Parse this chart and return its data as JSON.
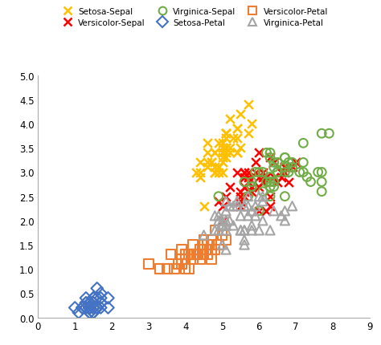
{
  "setosa_sepal": {
    "x": [
      5.1,
      4.9,
      4.7,
      4.6,
      5.0,
      5.4,
      4.6,
      5.0,
      4.4,
      4.9,
      5.4,
      4.8,
      4.8,
      4.3,
      5.8,
      5.7,
      5.4,
      5.1,
      5.7,
      5.1,
      5.4,
      5.1,
      4.6,
      5.1,
      4.8,
      5.0,
      5.0,
      5.2,
      5.2,
      4.7,
      4.8,
      5.4,
      5.2,
      5.5,
      4.9,
      5.0,
      5.5,
      4.9,
      4.4,
      5.1,
      5.0,
      4.5,
      4.4,
      5.0,
      5.1,
      4.8,
      5.1,
      4.6,
      5.3,
      5.0
    ],
    "y": [
      3.5,
      3.0,
      3.2,
      3.1,
      3.6,
      3.9,
      3.4,
      3.4,
      2.9,
      3.1,
      3.7,
      3.4,
      3.0,
      3.0,
      4.0,
      4.4,
      3.9,
      3.5,
      3.8,
      3.8,
      3.4,
      3.7,
      3.6,
      3.3,
      3.4,
      3.0,
      3.4,
      3.5,
      3.4,
      3.2,
      3.1,
      3.4,
      4.1,
      4.2,
      3.1,
      3.2,
      3.5,
      3.6,
      3.0,
      3.4,
      3.5,
      2.3,
      3.2,
      3.5,
      3.8,
      3.0,
      3.8,
      3.2,
      3.7,
      3.3
    ]
  },
  "setosa_petal": {
    "x": [
      1.4,
      1.4,
      1.3,
      1.5,
      1.4,
      1.7,
      1.4,
      1.5,
      1.4,
      1.5,
      1.5,
      1.6,
      1.4,
      1.1,
      1.2,
      1.5,
      1.3,
      1.4,
      1.7,
      1.5,
      1.7,
      1.5,
      1.0,
      1.7,
      1.9,
      1.6,
      1.6,
      1.5,
      1.4,
      1.6,
      1.6,
      1.5,
      1.5,
      1.4,
      1.5,
      1.2,
      1.3,
      1.4,
      1.3,
      1.5,
      1.3,
      1.3,
      1.3,
      1.6,
      1.9,
      1.4,
      1.6,
      1.4,
      1.5,
      1.4
    ],
    "y": [
      0.2,
      0.2,
      0.2,
      0.2,
      0.2,
      0.4,
      0.3,
      0.2,
      0.2,
      0.1,
      0.2,
      0.2,
      0.1,
      0.1,
      0.2,
      0.4,
      0.4,
      0.3,
      0.3,
      0.3,
      0.2,
      0.4,
      0.2,
      0.5,
      0.2,
      0.2,
      0.4,
      0.2,
      0.2,
      0.2,
      0.2,
      0.4,
      0.1,
      0.2,
      0.2,
      0.2,
      0.2,
      0.1,
      0.2,
      0.3,
      0.3,
      0.3,
      0.2,
      0.6,
      0.4,
      0.3,
      0.2,
      0.2,
      0.2,
      0.2
    ]
  },
  "versicolor_sepal": {
    "x": [
      7.0,
      6.4,
      6.9,
      5.5,
      6.5,
      5.7,
      6.3,
      4.9,
      6.6,
      5.2,
      5.0,
      5.9,
      6.0,
      6.1,
      5.6,
      6.7,
      5.6,
      5.8,
      6.2,
      5.6,
      5.9,
      6.1,
      6.3,
      6.1,
      6.4,
      6.6,
      6.8,
      6.7,
      6.0,
      5.7,
      5.5,
      5.5,
      5.8,
      6.0,
      5.4,
      6.0,
      6.7,
      6.3,
      5.6,
      5.5,
      5.5,
      6.1,
      5.8,
      5.0,
      5.6,
      5.7,
      5.7,
      6.2,
      5.1,
      5.7
    ],
    "y": [
      3.2,
      3.2,
      3.1,
      2.3,
      2.8,
      2.8,
      3.3,
      2.4,
      2.9,
      2.7,
      2.0,
      3.0,
      2.2,
      2.9,
      2.9,
      3.1,
      3.0,
      2.7,
      2.2,
      2.5,
      3.2,
      2.8,
      2.5,
      2.8,
      2.9,
      3.0,
      2.8,
      3.0,
      2.9,
      2.6,
      2.4,
      2.4,
      2.7,
      2.7,
      3.0,
      3.4,
      3.1,
      2.3,
      3.0,
      2.5,
      2.6,
      3.0,
      2.6,
      2.3,
      2.7,
      3.0,
      2.9,
      2.9,
      2.5,
      2.8
    ]
  },
  "versicolor_petal": {
    "x": [
      4.7,
      4.5,
      4.9,
      4.0,
      4.6,
      4.5,
      4.7,
      3.3,
      4.6,
      3.9,
      3.5,
      4.2,
      4.0,
      4.7,
      3.6,
      4.4,
      4.5,
      4.1,
      4.5,
      3.9,
      4.8,
      4.0,
      4.9,
      4.7,
      4.3,
      4.4,
      4.8,
      5.0,
      4.5,
      3.5,
      3.8,
      3.7,
      3.9,
      5.1,
      4.5,
      4.5,
      4.7,
      4.4,
      4.1,
      4.0,
      4.4,
      4.6,
      4.0,
      3.3,
      4.2,
      4.2,
      4.2,
      4.3,
      3.0,
      4.1
    ],
    "y": [
      1.4,
      1.5,
      1.5,
      1.3,
      1.5,
      1.3,
      1.6,
      1.0,
      1.3,
      1.4,
      1.0,
      1.5,
      1.0,
      1.4,
      1.3,
      1.4,
      1.5,
      1.0,
      1.5,
      1.1,
      1.8,
      1.3,
      1.5,
      1.2,
      1.3,
      1.4,
      1.4,
      1.7,
      1.5,
      1.0,
      1.1,
      1.0,
      1.2,
      1.6,
      1.5,
      1.6,
      1.5,
      1.3,
      1.3,
      1.3,
      1.2,
      1.4,
      1.2,
      1.0,
      1.3,
      1.2,
      1.3,
      1.3,
      1.1,
      1.3
    ]
  },
  "virginica_sepal": {
    "x": [
      6.3,
      5.8,
      7.1,
      6.3,
      6.5,
      7.6,
      4.9,
      7.3,
      6.7,
      7.2,
      6.5,
      6.4,
      6.8,
      5.7,
      5.8,
      6.4,
      6.5,
      7.7,
      7.7,
      6.0,
      6.9,
      5.6,
      7.7,
      6.3,
      6.7,
      7.2,
      6.2,
      6.1,
      6.4,
      7.2,
      7.4,
      7.9,
      6.4,
      6.3,
      6.1,
      7.7,
      6.3,
      6.4,
      6.0,
      6.9,
      6.7,
      6.9,
      5.8,
      6.8,
      6.7,
      6.7,
      6.3,
      6.5,
      6.2,
      5.9
    ],
    "y": [
      3.3,
      2.7,
      3.0,
      2.9,
      3.0,
      3.0,
      2.5,
      2.9,
      2.5,
      3.6,
      3.2,
      2.7,
      3.0,
      2.5,
      2.8,
      3.2,
      3.0,
      3.8,
      2.6,
      2.2,
      3.2,
      2.8,
      2.8,
      2.7,
      3.3,
      3.2,
      2.8,
      3.0,
      2.8,
      3.0,
      2.8,
      3.8,
      2.8,
      2.8,
      2.6,
      3.0,
      3.4,
      3.1,
      3.0,
      3.1,
      3.1,
      3.1,
      2.7,
      3.2,
      3.3,
      3.0,
      2.5,
      3.0,
      3.4,
      3.0
    ]
  },
  "virginica_petal": {
    "x": [
      6.0,
      5.1,
      5.9,
      5.6,
      5.8,
      6.6,
      4.5,
      6.3,
      5.8,
      6.1,
      5.1,
      5.3,
      5.5,
      5.0,
      5.1,
      5.3,
      5.5,
      6.7,
      6.9,
      5.0,
      5.7,
      4.9,
      6.7,
      4.9,
      5.7,
      6.0,
      4.8,
      4.9,
      5.6,
      5.8,
      6.1,
      6.4,
      5.6,
      5.1,
      5.6,
      6.1,
      5.6,
      5.5,
      4.8,
      5.4,
      5.6,
      5.1,
      5.9,
      5.7,
      5.2,
      5.0,
      5.2,
      5.4,
      5.1,
      5.1
    ],
    "y": [
      2.5,
      1.9,
      2.1,
      1.8,
      2.2,
      2.1,
      1.7,
      1.8,
      1.8,
      2.5,
      2.0,
      1.9,
      2.1,
      2.0,
      2.4,
      2.3,
      1.8,
      2.2,
      2.3,
      1.5,
      2.3,
      2.0,
      2.0,
      1.8,
      2.1,
      1.8,
      1.8,
      2.1,
      1.6,
      1.9,
      2.0,
      2.2,
      1.5,
      1.4,
      2.3,
      2.4,
      1.8,
      1.8,
      2.1,
      2.4,
      2.3,
      1.9,
      2.3,
      2.5,
      2.3,
      1.9,
      2.0,
      2.3,
      1.8,
      2.2
    ]
  },
  "colors": {
    "setosa_sepal": "#FFC000",
    "setosa_petal": "#4472C4",
    "versicolor_sepal": "#FF0000",
    "versicolor_petal": "#ED7D31",
    "virginica_sepal": "#70AD47",
    "virginica_petal": "#A5A5A5"
  },
  "xlim": [
    0,
    9
  ],
  "ylim": [
    0,
    5
  ],
  "xticks": [
    0,
    1,
    2,
    3,
    4,
    5,
    6,
    7,
    8,
    9
  ],
  "yticks": [
    0,
    0.5,
    1.0,
    1.5,
    2.0,
    2.5,
    3.0,
    3.5,
    4.0,
    4.5,
    5.0
  ],
  "legend_entries": [
    "Setosa-Sepal",
    "Versicolor-Sepal",
    "Virginica-Sepal",
    "Setosa-Petal",
    "Versicolor-Petal",
    "Virginica-Petal"
  ]
}
